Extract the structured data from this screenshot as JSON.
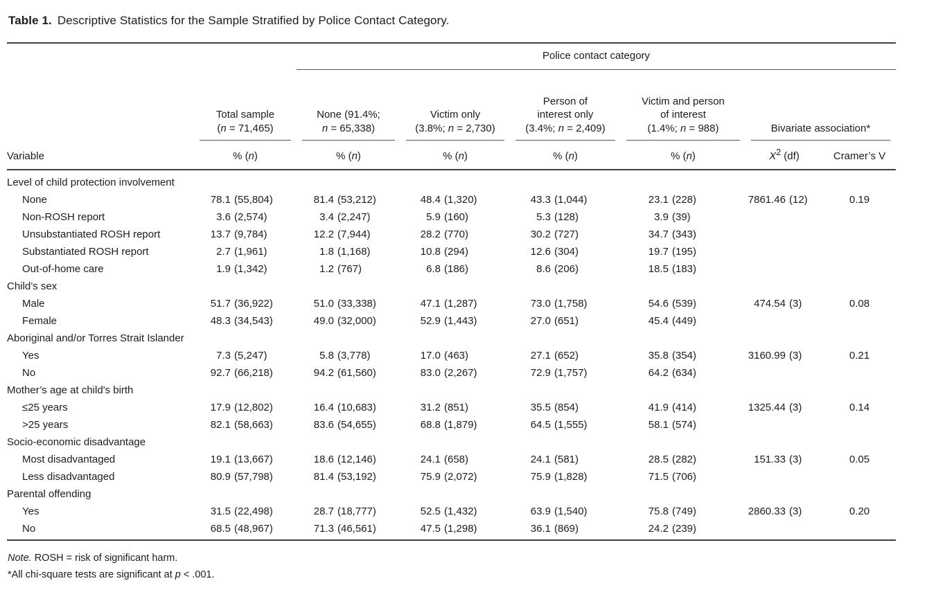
{
  "title": {
    "label": "Table 1.",
    "text": "Descriptive Statistics for the Sample Stratified by Police Contact Category."
  },
  "header": {
    "spanner": "Police contact category",
    "variable_label": "Variable",
    "columns": [
      {
        "title": "Total sample\n(_n_ = 71,465)",
        "sub": "% (_n_)"
      },
      {
        "title": "None (91.4%;\n_n_ = 65,338)",
        "sub": "% (_n_)"
      },
      {
        "title": "Victim only\n(3.8%; _n_ = 2,730)",
        "sub": "% (_n_)"
      },
      {
        "title": "Person of\ninterest only\n(3.4%; _n_ = 2,409)",
        "sub": "% (_n_)"
      },
      {
        "title": "Victim and person\nof interest\n(1.4%; _n_ = 988)",
        "sub": "% (_n_)"
      }
    ],
    "bivariate": {
      "title": "Bivariate association*",
      "sub1": "_X_^2^ (df)",
      "sub2": "Cramer’s V"
    }
  },
  "rows": [
    {
      "label": "Level of child protection involvement",
      "cells": null
    },
    {
      "label": "None",
      "cells": [
        {
          "p": "78.1",
          "n": "(55,804)"
        },
        {
          "p": "81.4",
          "n": "(53,212)"
        },
        {
          "p": "48.4",
          "n": "(1,320)"
        },
        {
          "p": "43.3",
          "n": "(1,044)"
        },
        {
          "p": "23.1",
          "n": "(228)"
        },
        {
          "p": "7861.46",
          "n": "(12)"
        }
      ],
      "v": "0.19"
    },
    {
      "label": "Non-ROSH report",
      "cells": [
        {
          "p": "3.6",
          "n": "(2,574)"
        },
        {
          "p": "3.4",
          "n": "(2,247)"
        },
        {
          "p": "5.9",
          "n": "(160)"
        },
        {
          "p": "5.3",
          "n": "(128)"
        },
        {
          "p": "3.9",
          "n": "(39)"
        },
        null
      ],
      "v": ""
    },
    {
      "label": "Unsubstantiated ROSH report",
      "cells": [
        {
          "p": "13.7",
          "n": "(9,784)"
        },
        {
          "p": "12.2",
          "n": "(7,944)"
        },
        {
          "p": "28.2",
          "n": "(770)"
        },
        {
          "p": "30.2",
          "n": "(727)"
        },
        {
          "p": "34.7",
          "n": "(343)"
        },
        null
      ],
      "v": ""
    },
    {
      "label": "Substantiated ROSH report",
      "cells": [
        {
          "p": "2.7",
          "n": "(1,961)"
        },
        {
          "p": "1.8",
          "n": "(1,168)"
        },
        {
          "p": "10.8",
          "n": "(294)"
        },
        {
          "p": "12.6",
          "n": "(304)"
        },
        {
          "p": "19.7",
          "n": "(195)"
        },
        null
      ],
      "v": ""
    },
    {
      "label": "Out-of-home care",
      "cells": [
        {
          "p": "1.9",
          "n": "(1,342)"
        },
        {
          "p": "1.2",
          "n": "(767)"
        },
        {
          "p": "6.8",
          "n": "(186)"
        },
        {
          "p": "8.6",
          "n": "(206)"
        },
        {
          "p": "18.5",
          "n": "(183)"
        },
        null
      ],
      "v": ""
    },
    {
      "label": "Child’s sex",
      "cells": null
    },
    {
      "label": "Male",
      "cells": [
        {
          "p": "51.7",
          "n": "(36,922)"
        },
        {
          "p": "51.0",
          "n": "(33,338)"
        },
        {
          "p": "47.1",
          "n": "(1,287)"
        },
        {
          "p": "73.0",
          "n": "(1,758)"
        },
        {
          "p": "54.6",
          "n": "(539)"
        },
        {
          "p": "474.54",
          "n": "(3)"
        }
      ],
      "v": "0.08"
    },
    {
      "label": "Female",
      "cells": [
        {
          "p": "48.3",
          "n": "(34,543)"
        },
        {
          "p": "49.0",
          "n": "(32,000)"
        },
        {
          "p": "52.9",
          "n": "(1,443)"
        },
        {
          "p": "27.0",
          "n": "(651)"
        },
        {
          "p": "45.4",
          "n": "(449)"
        },
        null
      ],
      "v": ""
    },
    {
      "label": "Aboriginal and/or Torres Strait Islander",
      "cells": null
    },
    {
      "label": "Yes",
      "cells": [
        {
          "p": "7.3",
          "n": "(5,247)"
        },
        {
          "p": "5.8",
          "n": "(3,778)"
        },
        {
          "p": "17.0",
          "n": "(463)"
        },
        {
          "p": "27.1",
          "n": "(652)"
        },
        {
          "p": "35.8",
          "n": "(354)"
        },
        {
          "p": "3160.99",
          "n": "(3)"
        }
      ],
      "v": "0.21"
    },
    {
      "label": "No",
      "cells": [
        {
          "p": "92.7",
          "n": "(66,218)"
        },
        {
          "p": "94.2",
          "n": "(61,560)"
        },
        {
          "p": "83.0",
          "n": "(2,267)"
        },
        {
          "p": "72.9",
          "n": "(1,757)"
        },
        {
          "p": "64.2",
          "n": "(634)"
        },
        null
      ],
      "v": ""
    },
    {
      "label": "Mother’s age at child's birth",
      "cells": null
    },
    {
      "label": "≤25 years",
      "cells": [
        {
          "p": "17.9",
          "n": "(12,802)"
        },
        {
          "p": "16.4",
          "n": "(10,683)"
        },
        {
          "p": "31.2",
          "n": "(851)"
        },
        {
          "p": "35.5",
          "n": "(854)"
        },
        {
          "p": "41.9",
          "n": "(414)"
        },
        {
          "p": "1325.44",
          "n": "(3)"
        }
      ],
      "v": "0.14"
    },
    {
      "label": ">25 years",
      "cells": [
        {
          "p": "82.1",
          "n": "(58,663)"
        },
        {
          "p": "83.6",
          "n": "(54,655)"
        },
        {
          "p": "68.8",
          "n": "(1,879)"
        },
        {
          "p": "64.5",
          "n": "(1,555)"
        },
        {
          "p": "58.1",
          "n": "(574)"
        },
        null
      ],
      "v": ""
    },
    {
      "label": "Socio-economic disadvantage",
      "cells": null
    },
    {
      "label": "Most disadvantaged",
      "cells": [
        {
          "p": "19.1",
          "n": "(13,667)"
        },
        {
          "p": "18.6",
          "n": "(12,146)"
        },
        {
          "p": "24.1",
          "n": "(658)"
        },
        {
          "p": "24.1",
          "n": "(581)"
        },
        {
          "p": "28.5",
          "n": "(282)"
        },
        {
          "p": "151.33",
          "n": "(3)"
        }
      ],
      "v": "0.05"
    },
    {
      "label": "Less disadvantaged",
      "cells": [
        {
          "p": "80.9",
          "n": "(57,798)"
        },
        {
          "p": "81.4",
          "n": "(53,192)"
        },
        {
          "p": "75.9",
          "n": "(2,072)"
        },
        {
          "p": "75.9",
          "n": "(1,828)"
        },
        {
          "p": "71.5",
          "n": "(706)"
        },
        null
      ],
      "v": ""
    },
    {
      "label": "Parental offending",
      "cells": null
    },
    {
      "label": "Yes",
      "cells": [
        {
          "p": "31.5",
          "n": "(22,498)"
        },
        {
          "p": "28.7",
          "n": "(18,777)"
        },
        {
          "p": "52.5",
          "n": "(1,432)"
        },
        {
          "p": "63.9",
          "n": "(1,540)"
        },
        {
          "p": "75.8",
          "n": "(749)"
        },
        {
          "p": "2860.33",
          "n": "(3)"
        }
      ],
      "v": "0.20"
    },
    {
      "label": "No",
      "cells": [
        {
          "p": "68.5",
          "n": "(48,967)"
        },
        {
          "p": "71.3",
          "n": "(46,561)"
        },
        {
          "p": "47.5",
          "n": "(1,298)"
        },
        {
          "p": "36.1",
          "n": "(869)"
        },
        {
          "p": "24.2",
          "n": "(239)"
        },
        null
      ],
      "v": ""
    }
  ],
  "footnotes": [
    "_Note._ ROSH = risk of significant harm.",
    "*All chi-square tests are significant at _p_ < .001."
  ]
}
